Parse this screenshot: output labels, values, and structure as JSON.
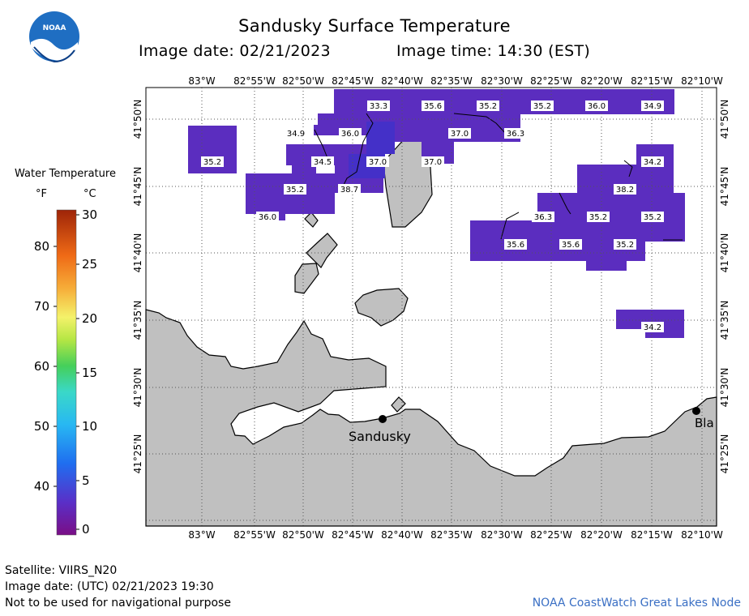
{
  "header": {
    "title": "Sandusky Surface Temperature",
    "image_date": "Image date: 02/21/2023",
    "image_time": "Image time: 14:30 (EST)"
  },
  "logo": {
    "text": "NOAA"
  },
  "legend": {
    "title": "Water Temperature",
    "unit_f": "°F",
    "unit_c": "°C",
    "f_ticks": [
      "80",
      "70",
      "60",
      "50",
      "40"
    ],
    "c_ticks": [
      "30",
      "25",
      "20",
      "15",
      "10",
      "5",
      "0"
    ]
  },
  "map": {
    "lon_labels": [
      "83°W",
      "82°55'W",
      "82°50'W",
      "82°45'W",
      "82°40'W",
      "82°35'W",
      "82°30'W",
      "82°25'W",
      "82°20'W",
      "82°15'W",
      "82°10'W"
    ],
    "lat_labels": [
      "41°50'N",
      "41°45'N",
      "41°40'N",
      "41°35'N",
      "41°30'N",
      "41°25'N"
    ],
    "places": [
      {
        "name": "Sandusky"
      },
      {
        "name": "Bla"
      }
    ],
    "temperature_labels": [
      "33.3",
      "35.6",
      "35.2",
      "35.2",
      "36.0",
      "34.9",
      "34.9",
      "36.0",
      "37.0",
      "36.3",
      "35.2",
      "34.5",
      "37.0",
      "37.0",
      "34.2",
      "35.2",
      "38.7",
      "38.2",
      "36.0",
      "36.3",
      "35.2",
      "35.2",
      "35.6",
      "35.6",
      "35.2",
      "34.2"
    ]
  },
  "footer": {
    "satellite": "Satellite: VIIRS_N20",
    "utc_date": "Image date: (UTC) 02/21/2023  19:30",
    "disclaimer": "Not to be used for navigational purpose",
    "credit": "NOAA CoastWatch Great Lakes Node"
  }
}
